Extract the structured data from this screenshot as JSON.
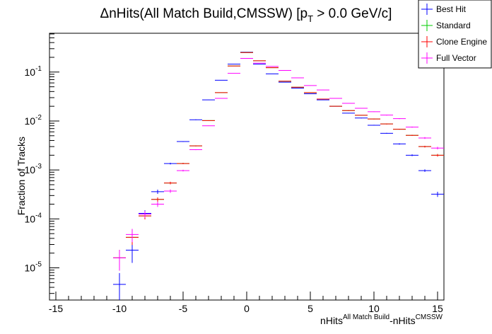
{
  "chart_data": {
    "type": "scatter",
    "title_main": "ΔnHits(All Match Build,CMSSW) [p",
    "title_sub": "T",
    "title_tail": " > 0.0 GeV/c]",
    "xlabel_a": "nHits",
    "xlabel_a_sup": "All Match Build",
    "xlabel_b": "-nHits",
    "xlabel_b_sup": "CMSSW",
    "ylabel": "Fraction of Tracks",
    "xlim": [
      -15.5,
      15.5
    ],
    "ylim": [
      2.2e-06,
      0.62
    ],
    "yscale": "log",
    "x_ticks": [
      -15,
      -10,
      -5,
      0,
      5,
      10,
      15
    ],
    "x_tick_labels": [
      "-15",
      "-10",
      "-5",
      "0",
      "5",
      "10",
      "15"
    ],
    "y_ticks": [
      1e-05,
      0.0001,
      0.001,
      0.01,
      0.1
    ],
    "y_tick_base": "10",
    "y_tick_exponents": [
      "-5",
      "-4",
      "-3",
      "-2",
      "-1"
    ],
    "legend_position": "top-right",
    "grid": false,
    "series": [
      {
        "name": "Best Hit",
        "color": "#0000ff",
        "x": [
          -10,
          -9,
          -8,
          -7,
          -6,
          -5,
          -4,
          -3,
          -2,
          -1,
          0,
          1,
          2,
          3,
          4,
          5,
          6,
          7,
          8,
          9,
          10,
          11,
          12,
          13,
          14,
          15
        ],
        "y": [
          4.6e-06,
          2.3e-05,
          0.00013,
          0.00036,
          0.00135,
          0.0038,
          0.0106,
          0.027,
          0.068,
          0.145,
          0.255,
          0.145,
          0.092,
          0.062,
          0.047,
          0.036,
          0.027,
          0.02,
          0.0145,
          0.0115,
          0.0082,
          0.0056,
          0.0034,
          0.002,
          0.00097,
          0.00032
        ],
        "yerr_rel": [
          0.7,
          0.45,
          0.15,
          0.1,
          0.04,
          0.02,
          0.015,
          0.01,
          0.005,
          0.004,
          0.003,
          0.004,
          0.005,
          0.006,
          0.007,
          0.008,
          0.01,
          0.012,
          0.013,
          0.015,
          0.018,
          0.02,
          0.03,
          0.04,
          0.06,
          0.12
        ]
      },
      {
        "name": "Standard",
        "color": "#00cc00",
        "x": [
          -10,
          -9,
          -8,
          -7,
          -6,
          -5,
          -4,
          -3,
          -2,
          -1,
          0,
          1,
          2,
          3,
          4,
          5,
          6,
          7,
          8,
          9,
          10,
          11,
          12,
          13,
          14,
          15
        ],
        "y": [
          1.6e-05,
          4.2e-05,
          0.000115,
          0.00025,
          0.00054,
          0.00135,
          0.0031,
          0.0102,
          0.038,
          0.133,
          0.25,
          0.17,
          0.123,
          0.065,
          0.049,
          0.038,
          0.028,
          0.02,
          0.0163,
          0.0131,
          0.011,
          0.0087,
          0.0068,
          0.0051,
          0.003,
          0.002
        ],
        "yerr_rel": [
          0.45,
          0.3,
          0.15,
          0.1,
          0.06,
          0.03,
          0.02,
          0.01,
          0.006,
          0.004,
          0.003,
          0.004,
          0.005,
          0.006,
          0.007,
          0.008,
          0.01,
          0.012,
          0.013,
          0.014,
          0.016,
          0.018,
          0.02,
          0.025,
          0.04,
          0.06
        ]
      },
      {
        "name": "Clone Engine",
        "color": "#ff0000",
        "x": [
          -10,
          -9,
          -8,
          -7,
          -6,
          -5,
          -4,
          -3,
          -2,
          -1,
          0,
          1,
          2,
          3,
          4,
          5,
          6,
          7,
          8,
          9,
          10,
          11,
          12,
          13,
          14,
          15
        ],
        "y": [
          1.6e-05,
          4.2e-05,
          0.000115,
          0.00025,
          0.00054,
          0.00135,
          0.0031,
          0.0102,
          0.038,
          0.133,
          0.25,
          0.17,
          0.123,
          0.065,
          0.049,
          0.038,
          0.028,
          0.02,
          0.0163,
          0.0131,
          0.011,
          0.0087,
          0.0068,
          0.0051,
          0.003,
          0.002
        ],
        "yerr_rel": [
          0.45,
          0.3,
          0.15,
          0.1,
          0.06,
          0.03,
          0.02,
          0.01,
          0.006,
          0.004,
          0.003,
          0.004,
          0.005,
          0.006,
          0.007,
          0.008,
          0.01,
          0.012,
          0.013,
          0.014,
          0.016,
          0.018,
          0.02,
          0.025,
          0.04,
          0.06
        ]
      },
      {
        "name": "Full Vector",
        "color": "#ff00ff",
        "x": [
          -10,
          -9,
          -8,
          -7,
          -6,
          -5,
          -4,
          -3,
          -2,
          -1,
          0,
          1,
          2,
          3,
          4,
          5,
          6,
          7,
          8,
          9,
          10,
          11,
          12,
          13,
          14,
          15
        ],
        "y": [
          1.6e-05,
          4.8e-05,
          0.000125,
          0.0002,
          0.00037,
          0.00097,
          0.0026,
          0.008,
          0.029,
          0.094,
          0.19,
          0.152,
          0.13,
          0.108,
          0.076,
          0.053,
          0.043,
          0.029,
          0.023,
          0.0182,
          0.0155,
          0.0132,
          0.0112,
          0.0075,
          0.0045,
          0.0028
        ],
        "yerr_rel": [
          0.45,
          0.3,
          0.15,
          0.12,
          0.08,
          0.04,
          0.02,
          0.012,
          0.007,
          0.004,
          0.003,
          0.004,
          0.005,
          0.006,
          0.007,
          0.008,
          0.01,
          0.012,
          0.013,
          0.014,
          0.016,
          0.018,
          0.02,
          0.025,
          0.04,
          0.06
        ]
      }
    ]
  }
}
